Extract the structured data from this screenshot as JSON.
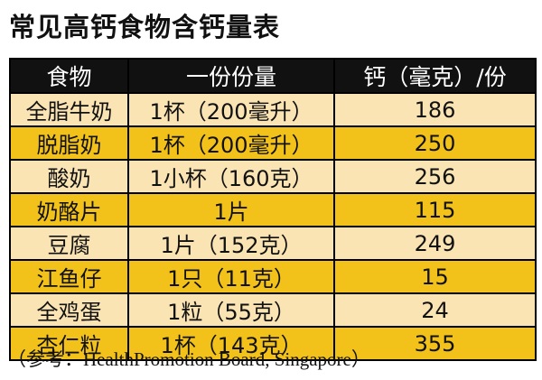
{
  "page": {
    "title": "常见高钙食物含钙量表",
    "source": "（参考：HealthPromotion Board, Singapore）"
  },
  "colors": {
    "header_bg": "#111111",
    "header_text": "#ffffff",
    "row_gold": "#f2c21a",
    "row_cream": "#fae4b4",
    "border": "#000000"
  },
  "table": {
    "headers": [
      "食物",
      "一份份量",
      "钙（毫克）/份"
    ],
    "rows": [
      [
        "全脂牛奶",
        "1杯（200毫升）",
        "186"
      ],
      [
        "脱脂奶",
        "1杯（200毫升）",
        "250"
      ],
      [
        "酸奶",
        "1小杯（160克）",
        "256"
      ],
      [
        "奶酪片",
        "1片",
        "115"
      ],
      [
        "豆腐",
        "1片（152克）",
        "249"
      ],
      [
        "江鱼仔",
        "1只（11克）",
        "15"
      ],
      [
        "全鸡蛋",
        "1粒（55克）",
        "24"
      ],
      [
        "杏仁粒",
        "1杯（143克）",
        "355"
      ]
    ]
  }
}
